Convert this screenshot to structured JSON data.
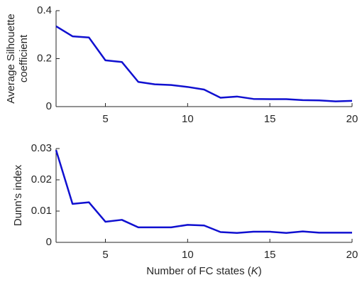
{
  "chart_data": [
    {
      "type": "line",
      "ylabel": [
        "Average Silhouette",
        "coefficient"
      ],
      "x": [
        2,
        3,
        4,
        5,
        6,
        7,
        8,
        9,
        10,
        11,
        12,
        13,
        14,
        15,
        16,
        17,
        18,
        19,
        20
      ],
      "series": [
        {
          "color": "#1010d0",
          "values": [
            0.335,
            0.293,
            0.288,
            0.193,
            0.186,
            0.103,
            0.093,
            0.09,
            0.082,
            0.071,
            0.037,
            0.042,
            0.032,
            0.031,
            0.031,
            0.027,
            0.026,
            0.022,
            0.024
          ]
        }
      ],
      "xlim": [
        2,
        20
      ],
      "xticks": [
        5,
        10,
        15,
        20
      ],
      "ylim": [
        0,
        0.4
      ],
      "yticks": [
        0,
        0.2,
        0.4
      ]
    },
    {
      "type": "line",
      "ylabel": [
        "Dunn's index"
      ],
      "xlabel": [
        "Number of FC states (",
        "K",
        ")"
      ],
      "x": [
        2,
        3,
        4,
        5,
        6,
        7,
        8,
        9,
        10,
        11,
        12,
        13,
        14,
        15,
        16,
        17,
        18,
        19,
        20
      ],
      "series": [
        {
          "color": "#1010d0",
          "values": [
            0.0295,
            0.0123,
            0.0128,
            0.0066,
            0.0072,
            0.0048,
            0.0048,
            0.0048,
            0.0056,
            0.0054,
            0.0033,
            0.003,
            0.0034,
            0.0034,
            0.003,
            0.0035,
            0.0031,
            0.0031,
            0.0031
          ]
        }
      ],
      "xlim": [
        2,
        20
      ],
      "xticks": [
        5,
        10,
        15,
        20
      ],
      "ylim": [
        0,
        0.03
      ],
      "yticks": [
        0,
        0.01,
        0.02,
        0.03
      ]
    }
  ]
}
